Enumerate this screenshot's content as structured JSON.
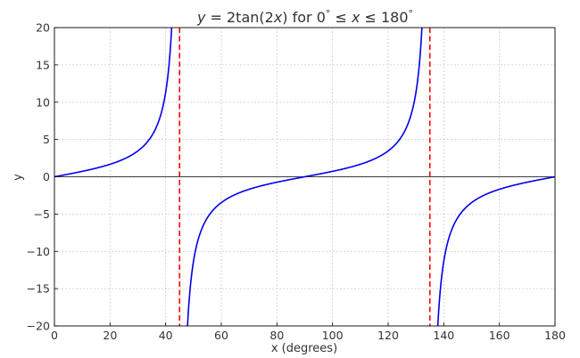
{
  "chart_data": {
    "type": "line",
    "title": "y = 2tan(2x) for 0° ≤ x ≤ 180°",
    "title_parts": {
      "var_y": "y",
      "equals_fn": " = 2tan(2",
      "var_x1": "x",
      "range_start": ") for 0",
      "deg1": "°",
      "leq1": " ≤ ",
      "var_x2": "x",
      "leq2": " ≤ 180",
      "deg2": "°"
    },
    "xlabel": "x (degrees)",
    "ylabel": "y",
    "xlim": [
      0,
      180
    ],
    "ylim": [
      -20,
      20
    ],
    "xticks": [
      0,
      20,
      40,
      60,
      80,
      100,
      120,
      140,
      160,
      180
    ],
    "yticks": [
      -20,
      -15,
      -10,
      -5,
      0,
      5,
      10,
      15,
      20
    ],
    "xtick_labels": [
      "0",
      "20",
      "40",
      "60",
      "80",
      "100",
      "120",
      "140",
      "160",
      "180"
    ],
    "ytick_labels": [
      "−20",
      "−15",
      "−10",
      "−5",
      "0",
      "5",
      "10",
      "15",
      "20"
    ],
    "grid": true,
    "series": [
      {
        "function": "y = 2*tan(2x), x in degrees",
        "color": "#0000ee",
        "x_sampled": [
          0,
          10,
          20,
          30,
          35,
          40,
          42,
          50,
          55,
          60,
          70,
          80,
          90,
          100,
          110,
          120,
          125,
          130,
          132,
          138,
          140,
          145,
          150,
          160,
          170,
          180
        ],
        "y_sampled": [
          0,
          0.73,
          1.68,
          3.46,
          5.49,
          11.34,
          19.03,
          -11.34,
          -5.49,
          -3.46,
          -1.68,
          -0.73,
          0,
          0.73,
          1.68,
          3.46,
          5.49,
          11.34,
          19.03,
          -19.03,
          -11.34,
          -5.49,
          -3.46,
          -1.68,
          -0.73,
          0
        ]
      }
    ],
    "asymptotes": {
      "x": [
        45,
        135
      ],
      "color": "#ff0000",
      "style": "dashed"
    },
    "zero_line": {
      "y": 0,
      "color": "#000000"
    }
  }
}
